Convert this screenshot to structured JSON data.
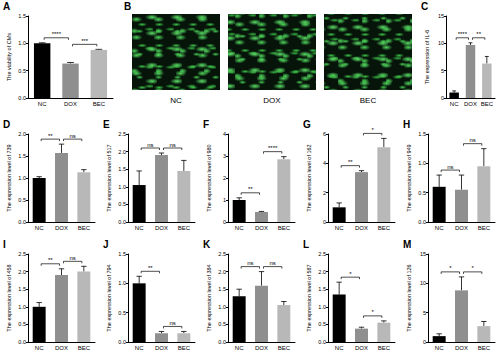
{
  "chart_data": [
    {
      "panel": "A",
      "type": "bar",
      "ylabel": "The viability of CMs",
      "categories": [
        "NC",
        "DOX",
        "BEC"
      ],
      "values": [
        1.0,
        0.63,
        0.88
      ],
      "errors": [
        0.01,
        0.02,
        0.01
      ],
      "colors": [
        "#000000",
        "#8f8f8f",
        "#b8b8b8"
      ],
      "ylim": [
        0,
        1.5
      ],
      "yticks": [
        {
          "value": 0,
          "label": "0.0"
        },
        0.5,
        {
          "value": 1,
          "label": "1.0"
        },
        1.5
      ],
      "grid": false,
      "significance": [
        {
          "from": "NC",
          "to": "DOX",
          "label": "****"
        },
        {
          "from": "DOX",
          "to": "BEC",
          "label": "***"
        }
      ]
    },
    {
      "panel": "C",
      "type": "bar",
      "ylabel": "The expression of IL-6",
      "categories": [
        "NC",
        "DOX",
        "BEC"
      ],
      "values": [
        1.0,
        9.7,
        6.3
      ],
      "errors": [
        0.3,
        0.4,
        1.3
      ],
      "colors": [
        "#000000",
        "#8f8f8f",
        "#b8b8b8"
      ],
      "ylim": [
        0,
        15
      ],
      "yticks": [
        0,
        5,
        10,
        15
      ],
      "grid": false,
      "significance": [
        {
          "from": "NC",
          "to": "DOX",
          "label": "****"
        },
        {
          "from": "DOX",
          "to": "BEC",
          "label": "**"
        }
      ]
    },
    {
      "panel": "D",
      "type": "bar",
      "ylabel": "The expression level of 739",
      "categories": [
        "NC",
        "DOX",
        "BEC"
      ],
      "values": [
        1.0,
        1.57,
        1.13
      ],
      "errors": [
        0.03,
        0.2,
        0.06
      ],
      "colors": [
        "#000000",
        "#8f8f8f",
        "#b8b8b8"
      ],
      "ylim": [
        0,
        2
      ],
      "yticks": [
        {
          "value": 0,
          "label": "0.0"
        },
        0.5,
        {
          "value": 1,
          "label": "1.0"
        },
        1.5,
        {
          "value": 2,
          "label": "2.0"
        }
      ],
      "grid": false,
      "significance": [
        {
          "from": "NC",
          "to": "DOX",
          "label": "**"
        },
        {
          "from": "DOX",
          "to": "BEC",
          "label": "ns"
        }
      ]
    },
    {
      "panel": "E",
      "type": "bar",
      "ylabel": "The expression level of 517",
      "categories": [
        "NC",
        "DOX",
        "BEC"
      ],
      "values": [
        1.05,
        1.9,
        1.45
      ],
      "errors": [
        0.4,
        0.06,
        0.3
      ],
      "colors": [
        "#000000",
        "#8f8f8f",
        "#b8b8b8"
      ],
      "ylim": [
        0,
        2.5
      ],
      "yticks": [
        {
          "value": 0,
          "label": "0.0"
        },
        0.5,
        {
          "value": 1,
          "label": "1.0"
        },
        1.5,
        {
          "value": 2,
          "label": "2.0"
        },
        2.5
      ],
      "grid": false,
      "significance": [
        {
          "from": "NC",
          "to": "DOX",
          "label": "ns"
        },
        {
          "from": "DOX",
          "to": "BEC",
          "label": "ns"
        }
      ]
    },
    {
      "panel": "F",
      "type": "bar",
      "ylabel": "The expression level of 980",
      "categories": [
        "NC",
        "DOX",
        "BEC"
      ],
      "values": [
        1.0,
        0.45,
        2.85
      ],
      "errors": [
        0.1,
        0.03,
        0.12
      ],
      "colors": [
        "#000000",
        "#8f8f8f",
        "#b8b8b8"
      ],
      "ylim": [
        0,
        4
      ],
      "yticks": [
        0,
        1,
        2,
        3,
        4
      ],
      "grid": false,
      "significance": [
        {
          "from": "NC",
          "to": "DOX",
          "label": "**"
        },
        {
          "from": "DOX",
          "to": "BEC",
          "label": "****"
        }
      ]
    },
    {
      "panel": "G",
      "type": "bar",
      "ylabel": "The expression level of 162",
      "categories": [
        "NC",
        "DOX",
        "BEC"
      ],
      "values": [
        1.0,
        3.4,
        5.1
      ],
      "errors": [
        0.3,
        0.1,
        0.6
      ],
      "colors": [
        "#000000",
        "#8f8f8f",
        "#b8b8b8"
      ],
      "ylim": [
        0,
        6
      ],
      "yticks": [
        0,
        2,
        4,
        6
      ],
      "grid": false,
      "significance": [
        {
          "from": "NC",
          "to": "DOX",
          "label": "**"
        },
        {
          "from": "DOX",
          "to": "BEC",
          "label": "*"
        }
      ]
    },
    {
      "panel": "H",
      "type": "bar",
      "ylabel": "The expression level of 949",
      "categories": [
        "NC",
        "DOX",
        "BEC"
      ],
      "values": [
        0.6,
        0.55,
        0.95
      ],
      "errors": [
        0.2,
        0.25,
        0.3
      ],
      "colors": [
        "#000000",
        "#8f8f8f",
        "#b8b8b8"
      ],
      "ylim": [
        0,
        1.5
      ],
      "yticks": [
        {
          "value": 0,
          "label": "0.0"
        },
        0.5,
        {
          "value": 1,
          "label": "1.0"
        },
        1.5
      ],
      "grid": false,
      "significance": [
        {
          "from": "NC",
          "to": "DOX",
          "label": "ns"
        },
        {
          "from": "DOX",
          "to": "BEC",
          "label": "ns"
        }
      ]
    },
    {
      "panel": "I",
      "type": "bar",
      "ylabel": "The expression level of 458",
      "categories": [
        "NC",
        "DOX",
        "BEC"
      ],
      "values": [
        1.0,
        1.9,
        2.0
      ],
      "errors": [
        0.12,
        0.18,
        0.15
      ],
      "colors": [
        "#000000",
        "#8f8f8f",
        "#b8b8b8"
      ],
      "ylim": [
        0,
        2.5
      ],
      "yticks": [
        {
          "value": 0,
          "label": "0.0"
        },
        0.5,
        {
          "value": 1,
          "label": "1.0"
        },
        1.5,
        {
          "value": 2,
          "label": "2.0"
        },
        2.5
      ],
      "grid": false,
      "significance": [
        {
          "from": "NC",
          "to": "DOX",
          "label": "**"
        },
        {
          "from": "DOX",
          "to": "BEC",
          "label": "ns"
        }
      ]
    },
    {
      "panel": "J",
      "type": "bar",
      "ylabel": "The expression level of 794",
      "categories": [
        "NC",
        "DOX",
        "BEC"
      ],
      "values": [
        1.0,
        0.15,
        0.15
      ],
      "errors": [
        0.12,
        0.03,
        0.03
      ],
      "colors": [
        "#000000",
        "#8f8f8f",
        "#b8b8b8"
      ],
      "ylim": [
        0,
        1.5
      ],
      "yticks": [
        {
          "value": 0,
          "label": "0.0"
        },
        0.5,
        {
          "value": 1,
          "label": "1.0"
        },
        1.5
      ],
      "grid": false,
      "significance": [
        {
          "from": "NC",
          "to": "DOX",
          "label": "**"
        },
        {
          "from": "DOX",
          "to": "BEC",
          "label": "ns"
        }
      ]
    },
    {
      "panel": "K",
      "type": "bar",
      "ylabel": "The expression level of 384",
      "categories": [
        "NC",
        "DOX",
        "BEC"
      ],
      "values": [
        1.3,
        1.6,
        1.05
      ],
      "errors": [
        0.2,
        0.4,
        0.1
      ],
      "colors": [
        "#000000",
        "#8f8f8f",
        "#b8b8b8"
      ],
      "ylim": [
        0,
        2.5
      ],
      "yticks": [
        {
          "value": 0,
          "label": "0.0"
        },
        0.5,
        {
          "value": 1,
          "label": "1.0"
        },
        1.5,
        {
          "value": 2,
          "label": "2.0"
        },
        2.5
      ],
      "grid": false,
      "significance": [
        {
          "from": "NC",
          "to": "DOX",
          "label": "ns"
        },
        {
          "from": "DOX",
          "to": "BEC",
          "label": "ns"
        }
      ]
    },
    {
      "panel": "L",
      "type": "bar",
      "ylabel": "The expression level of 587",
      "categories": [
        "NC",
        "DOX",
        "BEC"
      ],
      "values": [
        1.35,
        0.38,
        0.55
      ],
      "errors": [
        0.35,
        0.04,
        0.05
      ],
      "colors": [
        "#000000",
        "#8f8f8f",
        "#b8b8b8"
      ],
      "ylim": [
        0,
        2.5
      ],
      "yticks": [
        {
          "value": 0,
          "label": "0.0"
        },
        0.5,
        {
          "value": 1,
          "label": "1.0"
        },
        1.5,
        {
          "value": 2,
          "label": "2.0"
        },
        2.5
      ],
      "grid": false,
      "significance": [
        {
          "from": "NC",
          "to": "DOX",
          "label": "*"
        },
        {
          "from": "DOX",
          "to": "BEC",
          "label": "*"
        }
      ]
    },
    {
      "panel": "M",
      "type": "bar",
      "ylabel": "The expression level of 126",
      "categories": [
        "NC",
        "DOX",
        "BEC"
      ],
      "values": [
        1.0,
        8.8,
        2.7
      ],
      "errors": [
        0.4,
        2.3,
        0.8
      ],
      "colors": [
        "#000000",
        "#8f8f8f",
        "#b8b8b8"
      ],
      "ylim": [
        0,
        15
      ],
      "yticks": [
        0,
        5,
        10,
        15
      ],
      "grid": false,
      "significance": [
        {
          "from": "NC",
          "to": "DOX",
          "label": "*"
        },
        {
          "from": "DOX",
          "to": "BEC",
          "label": "*"
        }
      ]
    }
  ],
  "image_panel": {
    "panel": "B",
    "labels": [
      "NC",
      "DOX",
      "BEC"
    ]
  }
}
